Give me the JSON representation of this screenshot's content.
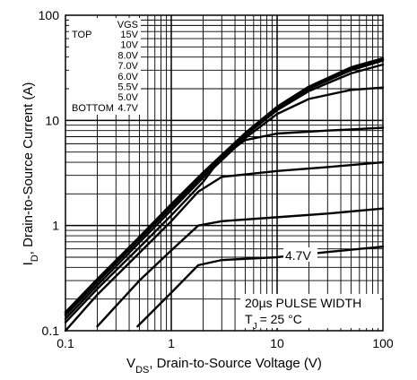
{
  "chart_data": {
    "type": "line",
    "title": "",
    "xlabel_main": "V",
    "xlabel_sub": "DS",
    "xlabel_rest": ", Drain-to-Source Voltage (V)",
    "ylabel_main": "I",
    "ylabel_sub": "D",
    "ylabel_rest": ",  Drain-to-Source Current (A)",
    "x_scale": "log",
    "y_scale": "log",
    "xlim": [
      0.1,
      100
    ],
    "ylim": [
      0.1,
      100
    ],
    "x_ticks": [
      {
        "value": 0.1,
        "label": "0.1"
      },
      {
        "value": 1,
        "label": "1"
      },
      {
        "value": 10,
        "label": "10"
      },
      {
        "value": 100,
        "label": "100"
      }
    ],
    "y_ticks": [
      {
        "value": 0.1,
        "label": "0.1"
      },
      {
        "value": 1,
        "label": "1"
      },
      {
        "value": 10,
        "label": "10"
      },
      {
        "value": 100,
        "label": "100"
      }
    ],
    "grid": true,
    "legend": {
      "header_left": "TOP",
      "header_right": "VGS",
      "footer_left": "BOTTOM",
      "entries": [
        "15V",
        "10V",
        "8.0V",
        "7.0V",
        "6.0V",
        "5.5V",
        "5.0V",
        "4.7V"
      ]
    },
    "annotations": {
      "curve_label": "4.7V",
      "pulse": "20µs PULSE WIDTH",
      "temp_main": "T",
      "temp_sub": "J",
      "temp_rest": "= 25 °C"
    },
    "series": [
      {
        "name": "15V",
        "x": [
          0.1,
          0.2,
          0.5,
          1,
          2,
          5,
          10,
          20,
          50,
          100
        ],
        "y": [
          0.15,
          0.31,
          0.78,
          1.6,
          3.2,
          7.6,
          13.5,
          21,
          32,
          39
        ]
      },
      {
        "name": "10V",
        "x": [
          0.1,
          0.2,
          0.5,
          1,
          2,
          5,
          10,
          20,
          50,
          100
        ],
        "y": [
          0.15,
          0.3,
          0.77,
          1.55,
          3.15,
          7.5,
          13.3,
          20.5,
          31,
          38
        ]
      },
      {
        "name": "8.0V",
        "x": [
          0.1,
          0.2,
          0.5,
          1,
          2,
          5,
          10,
          20,
          50,
          100
        ],
        "y": [
          0.145,
          0.3,
          0.76,
          1.55,
          3.1,
          7.4,
          13,
          20,
          30,
          37
        ]
      },
      {
        "name": "7.0V",
        "x": [
          0.1,
          0.2,
          0.5,
          1,
          2,
          5,
          10,
          20,
          50,
          100
        ],
        "y": [
          0.14,
          0.29,
          0.74,
          1.5,
          3.0,
          7.2,
          12.5,
          19,
          28,
          34
        ]
      },
      {
        "name": "6.0V",
        "x": [
          0.1,
          0.2,
          0.5,
          1,
          2,
          5,
          10,
          20,
          50,
          100
        ],
        "y": [
          0.13,
          0.27,
          0.69,
          1.4,
          2.85,
          6.8,
          11.5,
          16,
          19.5,
          20.5
        ]
      },
      {
        "name": "5.5V",
        "x": [
          0.1,
          0.2,
          0.5,
          1,
          2,
          3,
          5,
          10,
          30,
          100
        ],
        "y": [
          0.12,
          0.25,
          0.62,
          1.25,
          2.6,
          4.5,
          6.5,
          7.5,
          8.0,
          8.5
        ]
      },
      {
        "name": "5.0V",
        "x": [
          0.1,
          0.2,
          0.5,
          1,
          1.8,
          3,
          10,
          30,
          100
        ],
        "y": [
          0.1,
          0.22,
          0.55,
          1.1,
          2.1,
          2.9,
          3.3,
          3.6,
          4.0
        ]
      },
      {
        "name": "4.7V_upper",
        "x": [
          0.2,
          0.5,
          1,
          1.8,
          3,
          10,
          30,
          100
        ],
        "y": [
          0.11,
          0.3,
          0.58,
          1.0,
          1.1,
          1.2,
          1.3,
          1.45
        ]
      },
      {
        "name": "4.7V",
        "x": [
          0.48,
          1,
          1.8,
          3,
          10,
          30,
          100
        ],
        "y": [
          0.11,
          0.23,
          0.42,
          0.47,
          0.5,
          0.56,
          0.63
        ]
      }
    ]
  }
}
